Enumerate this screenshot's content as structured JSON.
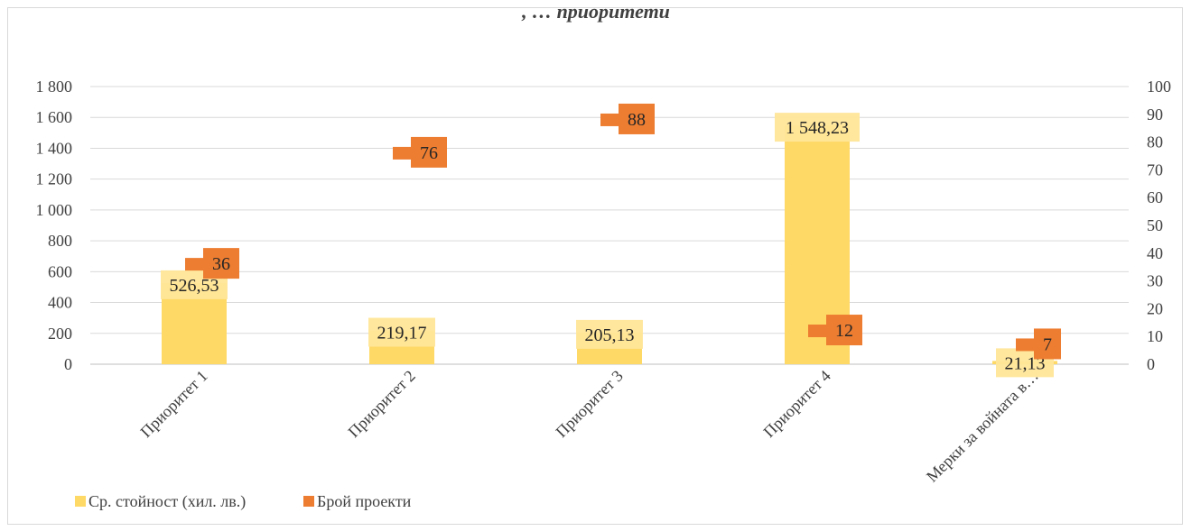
{
  "chart_data": {
    "type": "bar",
    "title": ", … приоритети",
    "categories": [
      "Приоритет 1",
      "Приоритет 2",
      "Приоритет 3",
      "Приоритет 4",
      "Мерки за войната в…"
    ],
    "series": [
      {
        "name": "Ср. стойност (хил. лв.)",
        "type": "bar",
        "axis": "left",
        "color": "#ffd966",
        "values": [
          526.53,
          219.17,
          205.13,
          1548.23,
          21.13
        ],
        "labels": [
          "526,53",
          "219,17",
          "205,13",
          "1 548,23",
          "21,13"
        ]
      },
      {
        "name": "Брой проекти",
        "type": "marker",
        "axis": "right",
        "color": "#ed7d31",
        "values": [
          36,
          76,
          88,
          12,
          7
        ],
        "labels": [
          "36",
          "76",
          "88",
          "12",
          "7"
        ]
      }
    ],
    "y_left": {
      "min": 0,
      "max": 1800,
      "step": 200,
      "tick_labels": [
        "0",
        "200",
        "400",
        "600",
        "800",
        "1 000",
        "1 200",
        "1 400",
        "1 600",
        "1 800"
      ]
    },
    "y_right": {
      "min": 0,
      "max": 100,
      "step": 10,
      "tick_labels": [
        "0",
        "10",
        "20",
        "30",
        "40",
        "50",
        "60",
        "70",
        "80",
        "90",
        "100"
      ]
    },
    "grid": true,
    "legend_position": "bottom-left"
  }
}
